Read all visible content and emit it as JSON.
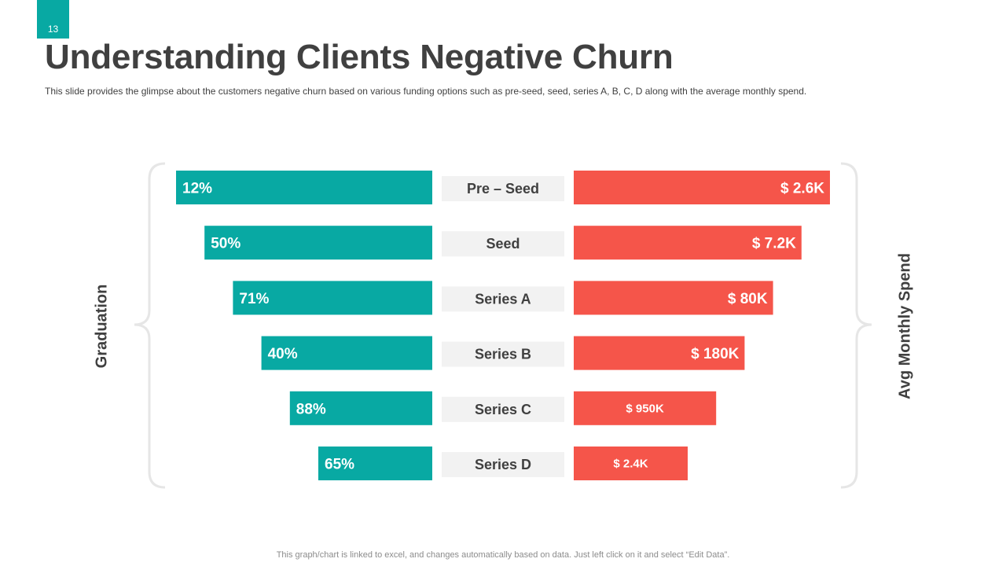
{
  "slide": {
    "number": "13",
    "title": "Understanding Clients Negative Churn",
    "subtitle": "This slide provides  the glimpse about the customers negative churn based on various  funding options such as pre-seed,  seed, series A, B, C, D along with the average  monthly spend.",
    "footer": "This graph/chart is linked to excel,  and changes automatically based on data. Just left click on it and select “Edit Data”."
  },
  "colors": {
    "left_bar": "#08a9a3",
    "right_bar": "#f5554a",
    "category_box": "#f2f2f2",
    "text_dark": "#404040",
    "brace": "#e6e6e6"
  },
  "chart_data": {
    "type": "bar",
    "layout": "butterfly-funnel",
    "categories": [
      "Pre – Seed",
      "Seed",
      "Series A",
      "Series B",
      "Series C",
      "Series D"
    ],
    "left_axis_label": "Graduation",
    "right_axis_label": "Avg Monthly Spend",
    "series": [
      {
        "name": "Graduation",
        "values": [
          12,
          50,
          71,
          40,
          88,
          65
        ],
        "labels": [
          "12%",
          "50%",
          "71%",
          "40%",
          "88%",
          "65%"
        ]
      },
      {
        "name": "Avg Monthly Spend",
        "values": [
          2.6,
          7.2,
          80,
          180,
          950,
          2.4
        ],
        "labels": [
          "$ 2.6K",
          "$ 7.2K",
          "$ 80K",
          "$ 180K",
          "$ 950K",
          "$ 2.4K"
        ]
      }
    ]
  }
}
